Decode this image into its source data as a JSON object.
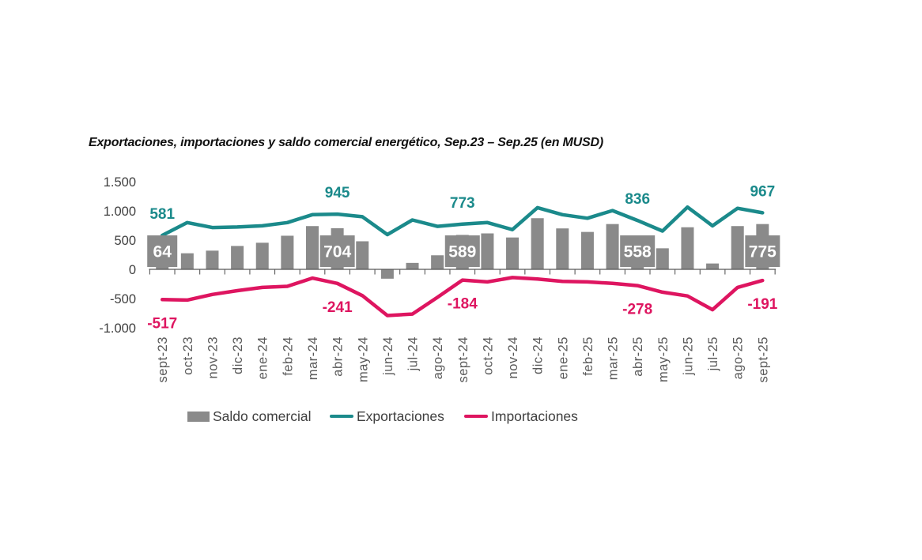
{
  "title": "Exportaciones, importaciones y saldo comercial energético, Sep.23 – Sep.25 (en MUSD)",
  "legend": {
    "saldo_label": "Saldo comercial",
    "exportaciones_label": "Exportaciones",
    "importaciones_label": "Importaciones"
  },
  "colors": {
    "teal": "#1b8a8b",
    "pink": "#de1560",
    "bar_gray": "#8a8a8a",
    "axis": "#595959",
    "ytick_text": "#3f3f3f",
    "xtick_text": "#595959",
    "title_text": "#111111",
    "label_box_text": "#ffffff"
  },
  "chart_data": {
    "type": "combo",
    "title": "Exportaciones, importaciones y saldo comercial energético, Sep.23 – Sep.25 (en MUSD)",
    "categories": [
      "sept-23",
      "oct-23",
      "nov-23",
      "dic-23",
      "ene-24",
      "feb-24",
      "mar-24",
      "abr-24",
      "may-24",
      "jun-24",
      "jul-24",
      "ago-24",
      "sept-24",
      "oct-24",
      "nov-24",
      "dic-24",
      "ene-25",
      "feb-25",
      "mar-25",
      "abr-25",
      "may-25",
      "jun-25",
      "jul-25",
      "ago-25",
      "sept-25"
    ],
    "series": [
      {
        "name": "Saldo comercial",
        "type": "bar",
        "color": "#8a8a8a",
        "values": [
          64,
          275,
          320,
          400,
          455,
          575,
          740,
          704,
          480,
          -160,
          110,
          240,
          589,
          615,
          545,
          875,
          700,
          640,
          775,
          558,
          360,
          720,
          100,
          740,
          775
        ]
      },
      {
        "name": "Exportaciones",
        "type": "line",
        "color": "#1b8a8b",
        "values": [
          581,
          800,
          715,
          725,
          745,
          800,
          935,
          945,
          900,
          595,
          845,
          735,
          773,
          800,
          680,
          1055,
          935,
          875,
          1005,
          836,
          655,
          1065,
          745,
          1045,
          967
        ]
      },
      {
        "name": "Importaciones",
        "type": "line",
        "color": "#de1560",
        "values": [
          -517,
          -525,
          -430,
          -365,
          -310,
          -290,
          -150,
          -241,
          -450,
          -790,
          -765,
          -480,
          -184,
          -215,
          -140,
          -165,
          -205,
          -215,
          -240,
          -278,
          -390,
          -455,
          -690,
          -310,
          -191
        ]
      }
    ],
    "ylim": [
      -1000,
      1500
    ],
    "y_ticks": {
      "values": [
        1500,
        1000,
        500,
        0,
        -500,
        -1000
      ],
      "labels": [
        "1.500",
        "1.000",
        "500",
        "0",
        "-500",
        "-1.000"
      ]
    },
    "grid": false,
    "legend_position": "bottom",
    "data_labels": [
      {
        "index": 0,
        "saldo": "64",
        "exportaciones": "581",
        "importaciones": "-517"
      },
      {
        "index": 7,
        "saldo": "704",
        "exportaciones": "945",
        "importaciones": "-241"
      },
      {
        "index": 12,
        "saldo": "589",
        "exportaciones": "773",
        "importaciones": "-184"
      },
      {
        "index": 19,
        "saldo": "558",
        "exportaciones": "836",
        "importaciones": "-278"
      },
      {
        "index": 24,
        "saldo": "775",
        "exportaciones": "967",
        "importaciones": "-191"
      }
    ]
  }
}
